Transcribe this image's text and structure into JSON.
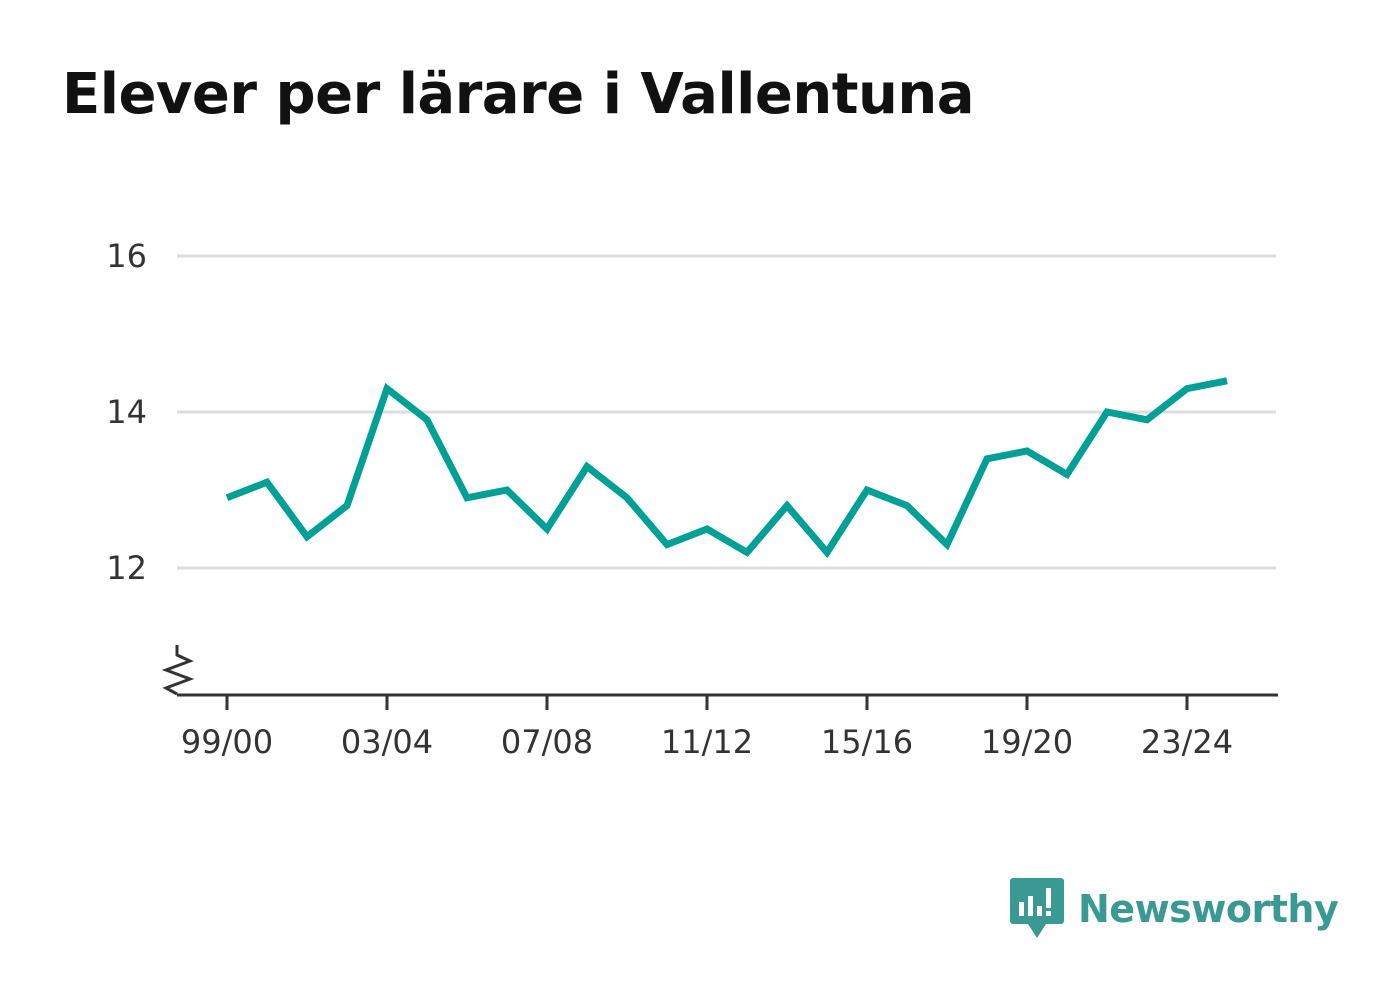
{
  "title": "Elever per lärare i Vallentuna",
  "brand": {
    "name": "Newsworthy",
    "icon": "newsworthy-logo-icon",
    "color": "#3a9a93"
  },
  "chart_data": {
    "type": "line",
    "title": "Elever per lärare i Vallentuna",
    "xlabel": "",
    "ylabel": "",
    "x": [
      "99/00",
      "00/01",
      "01/02",
      "02/03",
      "03/04",
      "04/05",
      "05/06",
      "06/07",
      "07/08",
      "08/09",
      "09/10",
      "10/11",
      "11/12",
      "12/13",
      "13/14",
      "14/15",
      "15/16",
      "16/17",
      "17/18",
      "18/19",
      "19/20",
      "20/21",
      "21/22",
      "22/23",
      "23/24",
      "24/25"
    ],
    "series": [
      {
        "color": "#00a096",
        "values": [
          12.9,
          13.1,
          12.4,
          12.8,
          14.3,
          13.9,
          12.9,
          13.0,
          12.5,
          13.3,
          12.9,
          12.3,
          12.5,
          12.2,
          12.8,
          12.2,
          13.0,
          12.8,
          12.3,
          13.4,
          13.5,
          13.2,
          14.0,
          13.9,
          14.3,
          14.4
        ]
      }
    ],
    "yticks": [
      12,
      14,
      16
    ],
    "ytick_labels": [
      "12",
      "14",
      "16"
    ],
    "xtick_labels": [
      "99/00",
      "03/04",
      "07/08",
      "11/12",
      "15/16",
      "19/20",
      "23/24"
    ],
    "ylim": [
      10.4,
      16
    ],
    "y_axis_break": true,
    "grid": true,
    "legend": false
  }
}
